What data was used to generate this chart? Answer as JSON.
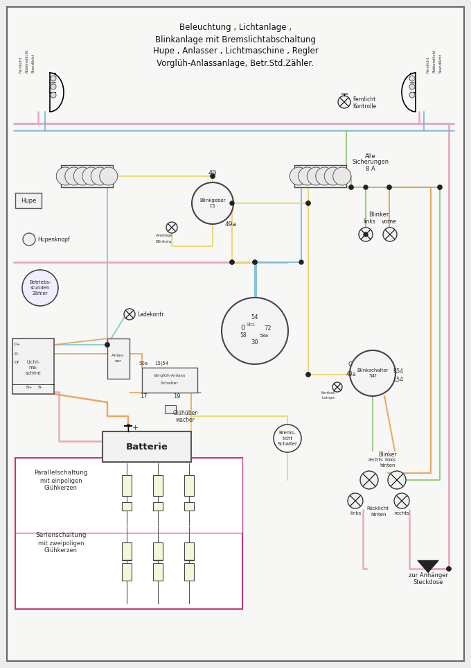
{
  "title_lines": [
    "Beleuchtung , Lichtanlage ,",
    "Blinkanlage mit Bremslichtabschaltung",
    "Hupe , Anlasser , Lichtmaschine , Regler",
    "Vorglüh-Anlassanlage, Betr.Std.Zähler."
  ],
  "bg_color": "#ededeb",
  "page_color": "#f7f7f5",
  "border_color": "#555555",
  "wire_colors": {
    "pink": "#e8a0b8",
    "blue": "#7bbcdc",
    "yellow": "#e8d870",
    "green": "#90c878",
    "orange": "#e8a050",
    "cyan": "#80ccd0",
    "gray": "#888888"
  },
  "figsize": [
    6.8,
    9.63
  ],
  "dpi": 100
}
